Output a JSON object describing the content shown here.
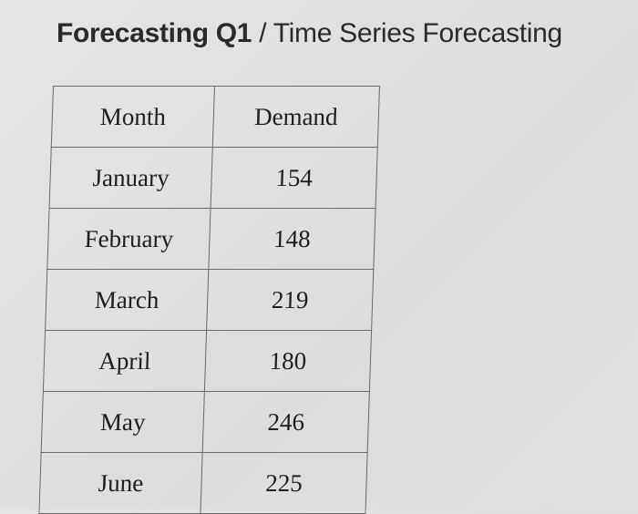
{
  "title": {
    "bold": "Forecasting Q1",
    "rest": " / Time Series Forecasting"
  },
  "table": {
    "headers": [
      "Month",
      "Demand"
    ],
    "rows": [
      {
        "month": "January",
        "demand": "154"
      },
      {
        "month": "February",
        "demand": "148"
      },
      {
        "month": "March",
        "demand": "219"
      },
      {
        "month": "April",
        "demand": "180"
      },
      {
        "month": "May",
        "demand": "246"
      },
      {
        "month": "June",
        "demand": "225"
      }
    ]
  }
}
